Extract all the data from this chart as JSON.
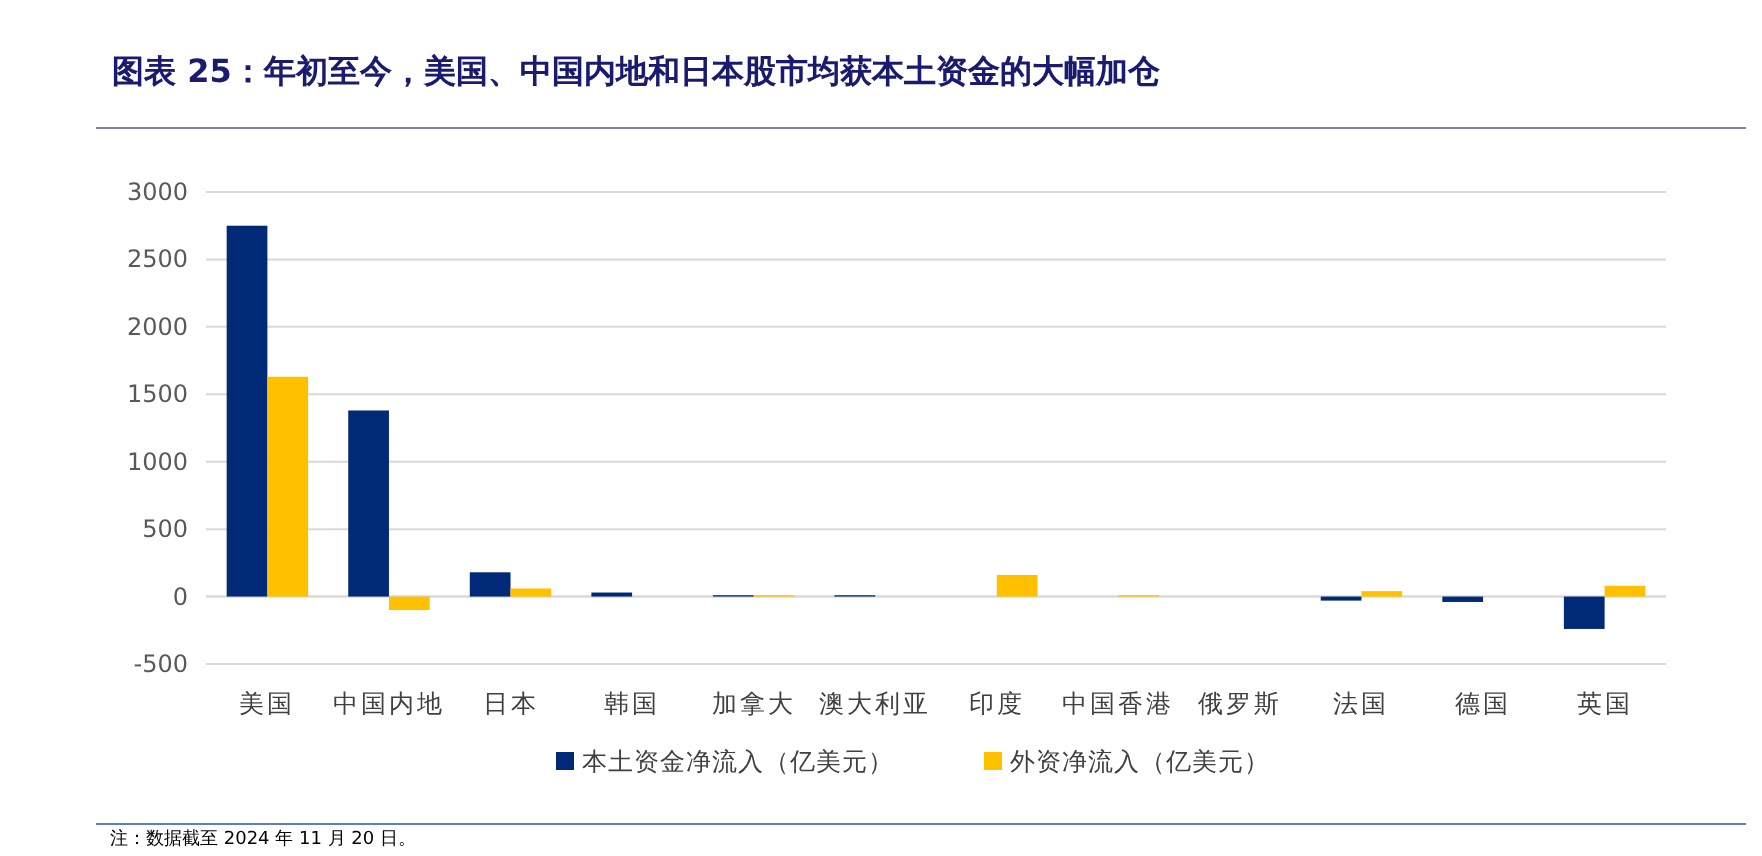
{
  "chart_data": {
    "type": "bar",
    "title": "图表 25：年初至今，美国、中国内地和日本股市均获本土资金的大幅加仓",
    "categories": [
      "美国",
      "中国内地",
      "日本",
      "韩国",
      "加拿大",
      "澳大利亚",
      "印度",
      "中国香港",
      "俄罗斯",
      "法国",
      "德国",
      "英国"
    ],
    "series": [
      {
        "name": "本土资金净流入（亿美元）",
        "color": "#002a78",
        "values": [
          2750,
          1380,
          180,
          30,
          10,
          10,
          0,
          0,
          0,
          -30,
          -40,
          -240
        ]
      },
      {
        "name": "外资净流入（亿美元）",
        "color": "#ffc000",
        "values": [
          1630,
          -100,
          60,
          0,
          10,
          0,
          160,
          10,
          0,
          40,
          0,
          80
        ]
      }
    ],
    "ylim": [
      -500,
      3000
    ],
    "yticks": [
      -500,
      0,
      500,
      1000,
      1500,
      2000,
      2500,
      3000
    ],
    "grid": "y",
    "legend": "bottom",
    "annotations": [
      "注：数据截至 2024 年 11 月 20 日。"
    ]
  }
}
